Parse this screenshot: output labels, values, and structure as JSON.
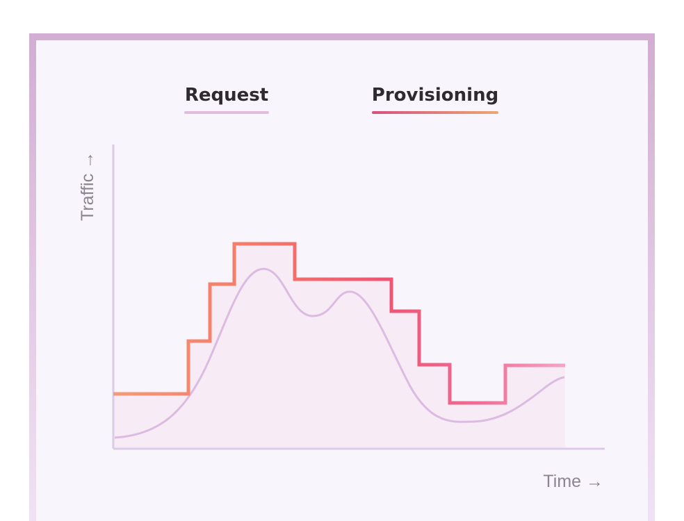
{
  "legend": {
    "request": "Request",
    "provisioning": "Provisioning"
  },
  "axes": {
    "y": "Traffic →",
    "x": "Time →"
  }
}
